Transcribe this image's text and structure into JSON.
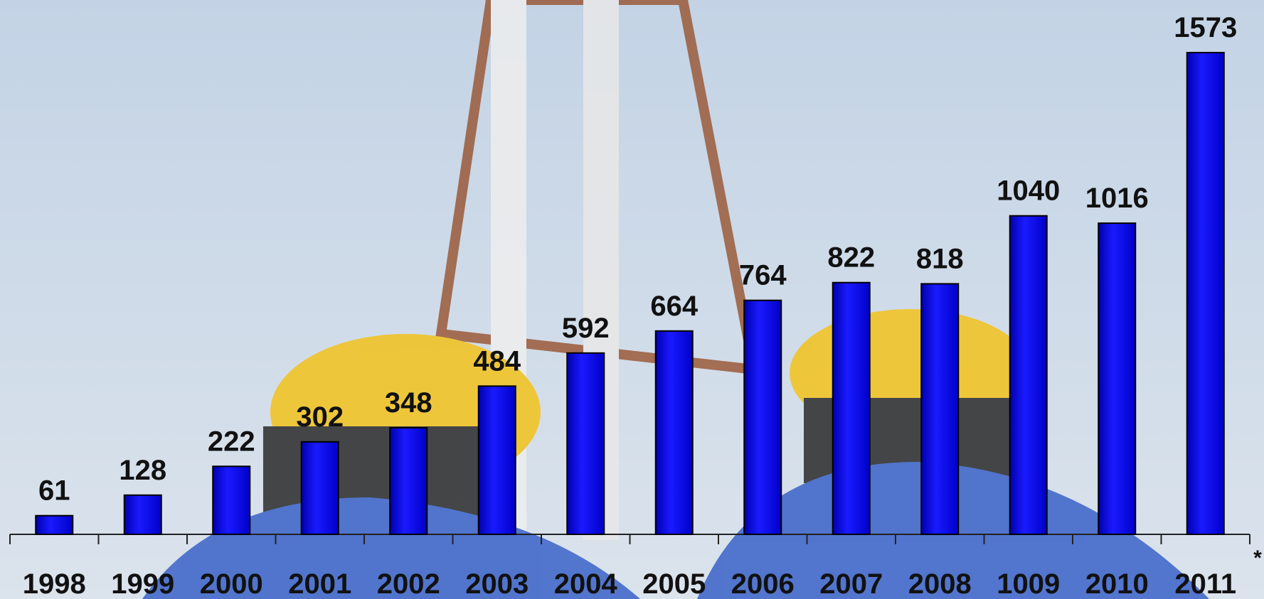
{
  "chart_data": {
    "type": "bar",
    "categories": [
      "1998",
      "1999",
      "2000",
      "2001",
      "2002",
      "2003",
      "2004",
      "2005",
      "2006",
      "2007",
      "2008",
      "1009",
      "2010",
      "2011"
    ],
    "values": [
      61,
      128,
      222,
      302,
      348,
      484,
      592,
      664,
      764,
      822,
      818,
      1040,
      1016,
      1573
    ],
    "color": "#0a0af0",
    "note": "*"
  }
}
